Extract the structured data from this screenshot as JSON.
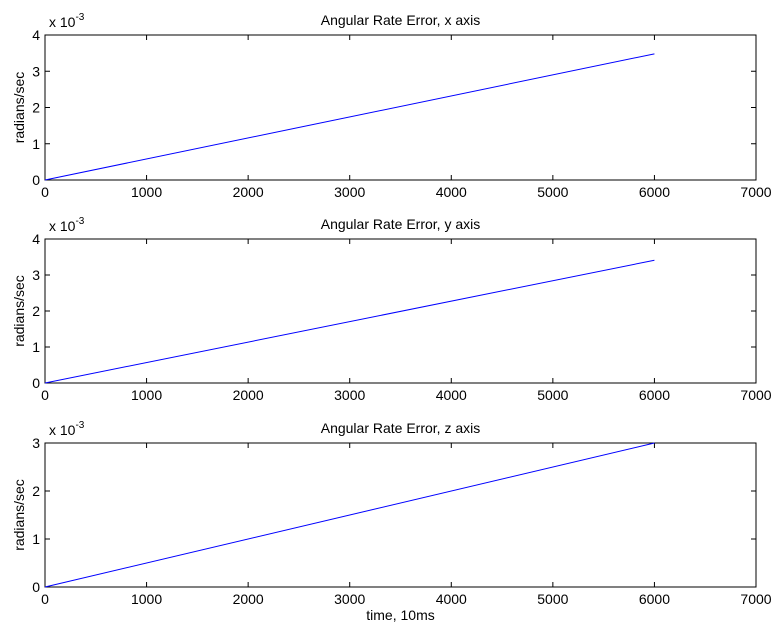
{
  "chart_data": [
    {
      "type": "line",
      "title": "Angular Rate Error, x axis",
      "xlabel": "",
      "ylabel": "radians/sec",
      "y_multiplier": {
        "base": "x 10",
        "exponent": "-3"
      },
      "xlim": [
        0,
        7000
      ],
      "ylim": [
        0,
        4
      ],
      "x_ticks": [
        0,
        1000,
        2000,
        3000,
        4000,
        5000,
        6000,
        7000
      ],
      "y_ticks": [
        0,
        1,
        2,
        3,
        4
      ],
      "grid": false,
      "series": [
        {
          "x": [
            0,
            6000
          ],
          "y": [
            0,
            3.48
          ],
          "color": "#0000ff"
        }
      ]
    },
    {
      "type": "line",
      "title": "Angular Rate Error, y axis",
      "xlabel": "",
      "ylabel": "radians/sec",
      "y_multiplier": {
        "base": "x 10",
        "exponent": "-3"
      },
      "xlim": [
        0,
        7000
      ],
      "ylim": [
        0,
        4
      ],
      "x_ticks": [
        0,
        1000,
        2000,
        3000,
        4000,
        5000,
        6000,
        7000
      ],
      "y_ticks": [
        0,
        1,
        2,
        3,
        4
      ],
      "grid": false,
      "series": [
        {
          "x": [
            0,
            6000
          ],
          "y": [
            0,
            3.41
          ],
          "color": "#0000ff"
        }
      ]
    },
    {
      "type": "line",
      "title": "Angular Rate Error, z axis",
      "xlabel": "time, 10ms",
      "ylabel": "radians/sec",
      "y_multiplier": {
        "base": "x 10",
        "exponent": "-3"
      },
      "xlim": [
        0,
        7000
      ],
      "ylim": [
        0,
        3
      ],
      "x_ticks": [
        0,
        1000,
        2000,
        3000,
        4000,
        5000,
        6000,
        7000
      ],
      "y_ticks": [
        0,
        1,
        2,
        3
      ],
      "grid": false,
      "series": [
        {
          "x": [
            0,
            6000
          ],
          "y": [
            0,
            3.0
          ],
          "color": "#0000ff"
        }
      ]
    }
  ]
}
